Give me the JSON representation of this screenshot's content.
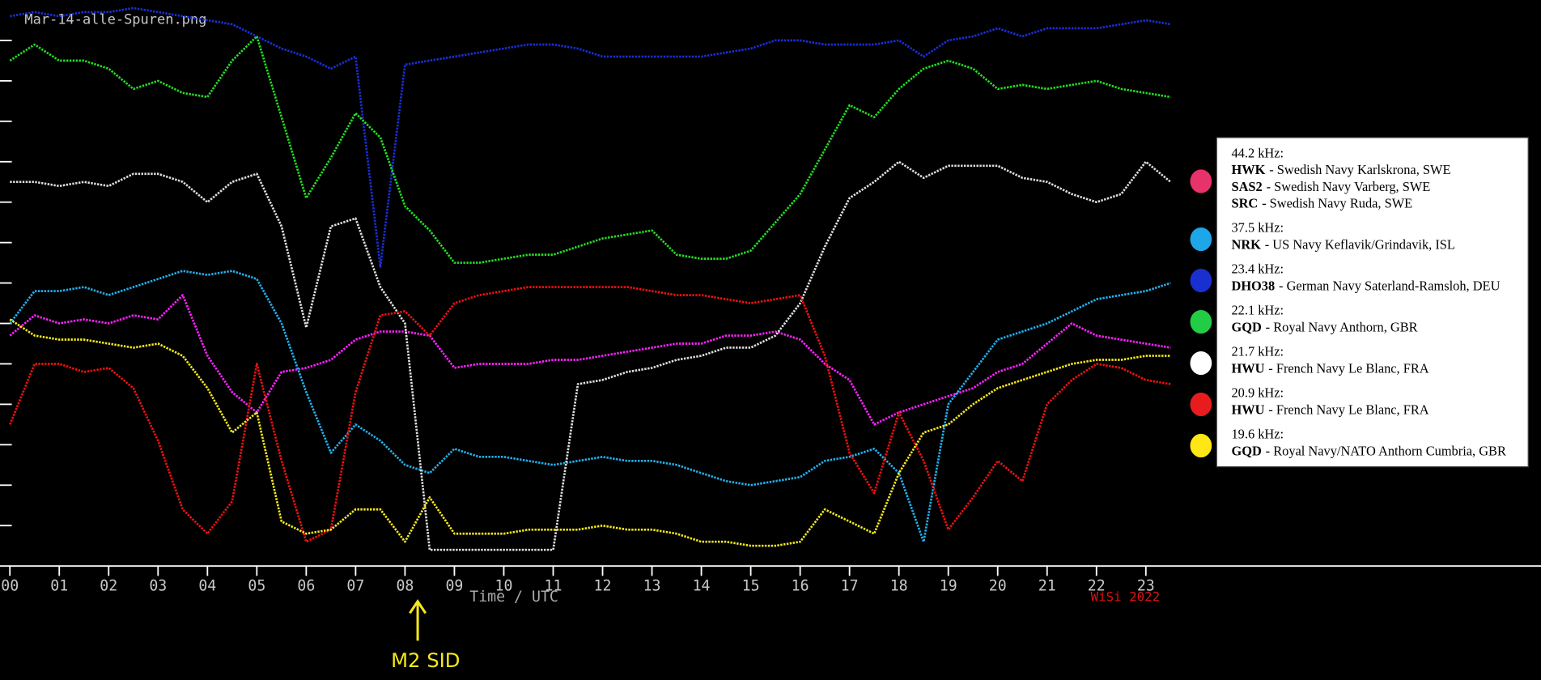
{
  "chart_data": {
    "type": "line",
    "title": "Mar-14-alle-Spuren.png",
    "x_label": "Time / UTC",
    "credit": "WiSi 2022",
    "annotation": "M2 SID",
    "xlim": [
      -0.2,
      31
    ],
    "ylim": [
      0,
      14
    ],
    "xticks": [
      {
        "value": 0,
        "label": "00"
      },
      {
        "value": 1,
        "label": "01"
      },
      {
        "value": 2,
        "label": "02"
      },
      {
        "value": 3,
        "label": "03"
      },
      {
        "value": 4,
        "label": "04"
      },
      {
        "value": 5,
        "label": "05"
      },
      {
        "value": 6,
        "label": "06"
      },
      {
        "value": 7,
        "label": "07"
      },
      {
        "value": 8,
        "label": "08"
      },
      {
        "value": 9,
        "label": "09"
      },
      {
        "value": 10,
        "label": "10"
      },
      {
        "value": 11,
        "label": "11"
      },
      {
        "value": 12,
        "label": "12"
      },
      {
        "value": 13,
        "label": "13"
      },
      {
        "value": 14,
        "label": "14"
      },
      {
        "value": 15,
        "label": "15"
      },
      {
        "value": 16,
        "label": "16"
      },
      {
        "value": 17,
        "label": "17"
      },
      {
        "value": 18,
        "label": "18"
      },
      {
        "value": 19,
        "label": "19"
      },
      {
        "value": 20,
        "label": "20"
      },
      {
        "value": 21,
        "label": "21"
      },
      {
        "value": 22,
        "label": "22"
      },
      {
        "value": 23,
        "label": "23"
      }
    ],
    "yticks": [
      1,
      2,
      3,
      4,
      5,
      6,
      7,
      8,
      9,
      10,
      11,
      12,
      13
    ],
    "x": [
      0,
      0.5,
      1,
      1.5,
      2,
      2.5,
      3,
      3.5,
      4,
      4.5,
      5,
      5.5,
      6,
      6.5,
      7,
      7.5,
      8,
      8.5,
      9,
      9.5,
      10,
      10.5,
      11,
      11.5,
      12,
      12.5,
      13,
      13.5,
      14,
      14.5,
      15,
      15.5,
      16,
      16.5,
      17,
      17.5,
      18,
      18.5,
      19,
      19.5,
      20,
      20.5,
      21,
      21.5,
      22,
      22.5,
      23,
      23.5
    ],
    "series": [
      {
        "name": "44.2 kHz:",
        "color": "#ff22ff",
        "legend_color": "#e8336a",
        "stations": [
          {
            "code": "HWK",
            "text": "- Swedish Navy Karlskrona, SWE"
          },
          {
            "code": "SAS2",
            "text": "- Swedish Navy Varberg, SWE"
          },
          {
            "code": "SRC",
            "text": "- Swedish Navy Ruda, SWE"
          }
        ],
        "values": [
          5.7,
          6.2,
          6.0,
          6.1,
          6.0,
          6.2,
          6.1,
          6.7,
          5.2,
          4.3,
          3.8,
          4.8,
          4.9,
          5.1,
          5.6,
          5.8,
          5.8,
          5.7,
          4.9,
          5.0,
          5.0,
          5.0,
          5.1,
          5.1,
          5.2,
          5.3,
          5.4,
          5.5,
          5.5,
          5.7,
          5.7,
          5.8,
          5.6,
          5.0,
          4.6,
          3.5,
          3.8,
          4.0,
          4.2,
          4.4,
          4.8,
          5.0,
          5.5,
          6.0,
          5.7,
          5.6,
          5.5,
          5.4
        ]
      },
      {
        "name": "37.5 kHz:",
        "color": "#22b0ee",
        "legend_color": "#1ea7e8",
        "stations": [
          {
            "code": "NRK",
            "text": "- US Navy Keflavik/Grindavik, ISL"
          }
        ],
        "values": [
          6.0,
          6.8,
          6.8,
          6.9,
          6.7,
          6.9,
          7.1,
          7.3,
          7.2,
          7.3,
          7.1,
          6.0,
          4.3,
          2.8,
          3.5,
          3.1,
          2.5,
          2.3,
          2.9,
          2.7,
          2.7,
          2.6,
          2.5,
          2.6,
          2.7,
          2.6,
          2.6,
          2.5,
          2.3,
          2.1,
          2.0,
          2.1,
          2.2,
          2.6,
          2.7,
          2.9,
          2.3,
          0.6,
          4.0,
          4.8,
          5.6,
          5.8,
          6.0,
          6.3,
          6.6,
          6.7,
          6.8,
          7.0
        ]
      },
      {
        "name": "23.4 kHz:",
        "color": "#1a2fd8",
        "legend_color": "#1a2fd0",
        "stations": [
          {
            "code": "DHO38",
            "text": "- German Navy Saterland-Ramsloh, DEU"
          }
        ],
        "values": [
          13.6,
          13.7,
          13.6,
          13.7,
          13.7,
          13.8,
          13.7,
          13.6,
          13.5,
          13.4,
          13.1,
          12.8,
          12.6,
          12.3,
          12.6,
          7.4,
          12.4,
          12.5,
          12.6,
          12.7,
          12.8,
          12.9,
          12.9,
          12.8,
          12.6,
          12.6,
          12.6,
          12.6,
          12.6,
          12.7,
          12.8,
          13.0,
          13.0,
          12.9,
          12.9,
          12.9,
          13.0,
          12.6,
          13.0,
          13.1,
          13.3,
          13.1,
          13.3,
          13.3,
          13.3,
          13.4,
          13.5,
          13.4
        ]
      },
      {
        "name": "22.1 kHz:",
        "color": "#22dd22",
        "legend_color": "#22cc44",
        "stations": [
          {
            "code": "GQD",
            "text": "- Royal Navy Anthorn, GBR"
          }
        ],
        "values": [
          12.5,
          12.9,
          12.5,
          12.5,
          12.3,
          11.8,
          12.0,
          11.7,
          11.6,
          12.5,
          13.1,
          11.1,
          9.1,
          10.1,
          11.2,
          10.6,
          8.9,
          8.3,
          7.5,
          7.5,
          7.6,
          7.7,
          7.7,
          7.9,
          8.1,
          8.2,
          8.3,
          7.7,
          7.6,
          7.6,
          7.8,
          8.5,
          9.2,
          10.3,
          11.4,
          11.1,
          11.8,
          12.3,
          12.5,
          12.3,
          11.8,
          11.9,
          11.8,
          11.9,
          12.0,
          11.8,
          11.7,
          11.6
        ]
      },
      {
        "name": "21.7 kHz:",
        "color": "#dddddd",
        "legend_color": "#ffffff",
        "stations": [
          {
            "code": "HWU",
            "text": "- French Navy Le Blanc, FRA"
          }
        ],
        "values": [
          9.5,
          9.5,
          9.4,
          9.5,
          9.4,
          9.7,
          9.7,
          9.5,
          9.0,
          9.5,
          9.7,
          8.4,
          5.9,
          8.4,
          8.6,
          6.9,
          6.0,
          0.4,
          0.4,
          0.4,
          0.4,
          0.4,
          0.4,
          4.5,
          4.6,
          4.8,
          4.9,
          5.1,
          5.2,
          5.4,
          5.4,
          5.7,
          6.5,
          7.9,
          9.1,
          9.5,
          10.0,
          9.6,
          9.9,
          9.9,
          9.9,
          9.6,
          9.5,
          9.2,
          9.0,
          9.2,
          10.0,
          9.5
        ]
      },
      {
        "name": "20.9 kHz:",
        "color": "#ee1111",
        "legend_color": "#e81c1c",
        "stations": [
          {
            "code": "HWU",
            "text": "- French Navy Le Blanc, FRA"
          }
        ],
        "values": [
          3.5,
          5.0,
          5.0,
          4.8,
          4.9,
          4.4,
          3.1,
          1.4,
          0.8,
          1.6,
          5.0,
          2.6,
          0.6,
          0.9,
          4.3,
          6.2,
          6.3,
          5.7,
          6.5,
          6.7,
          6.8,
          6.9,
          6.9,
          6.9,
          6.9,
          6.9,
          6.8,
          6.7,
          6.7,
          6.6,
          6.5,
          6.6,
          6.7,
          5.2,
          2.8,
          1.8,
          3.8,
          2.6,
          0.9,
          1.7,
          2.6,
          2.1,
          4.0,
          4.6,
          5.0,
          4.9,
          4.6,
          4.5
        ]
      },
      {
        "name": "19.6 kHz:",
        "color": "#f5e81a",
        "legend_color": "#ffe614",
        "stations": [
          {
            "code": "GQD",
            "text": "- Royal Navy/NATO Anthorn Cumbria, GBR"
          }
        ],
        "values": [
          6.1,
          5.7,
          5.6,
          5.6,
          5.5,
          5.4,
          5.5,
          5.2,
          4.4,
          3.3,
          3.8,
          1.1,
          0.8,
          0.9,
          1.4,
          1.4,
          0.6,
          1.7,
          0.8,
          0.8,
          0.8,
          0.9,
          0.9,
          0.9,
          1.0,
          0.9,
          0.9,
          0.8,
          0.6,
          0.6,
          0.5,
          0.5,
          0.6,
          1.4,
          1.1,
          0.8,
          2.3,
          3.3,
          3.5,
          4.0,
          4.4,
          4.6,
          4.8,
          5.0,
          5.1,
          5.1,
          5.2,
          5.2
        ]
      }
    ]
  }
}
